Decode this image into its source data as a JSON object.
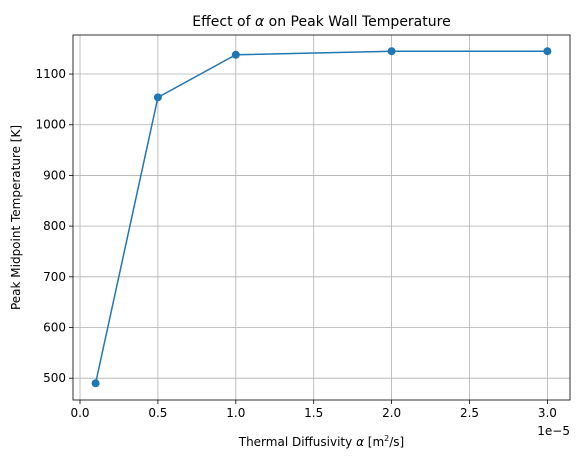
{
  "chart_data": {
    "type": "line",
    "title_prefix": "Effect of ",
    "title_symbol": "α",
    "title_suffix": " on Peak Wall Temperature",
    "xlabel_prefix": "Thermal Diffusivity ",
    "xlabel_symbol": "α",
    "xlabel_unit_open": " [m",
    "xlabel_unit_exp": "2",
    "xlabel_unit_close": "/s]",
    "ylabel": "Peak Midpoint Temperature [K]",
    "x_offset_label": "1e−5",
    "xlim": [
      -0.045,
      3.145
    ],
    "ylim": [
      457,
      1177
    ],
    "x_ticks": [
      0.0,
      0.5,
      1.0,
      1.5,
      2.0,
      2.5,
      3.0
    ],
    "x_tick_labels": [
      "0.0",
      "0.5",
      "1.0",
      "1.5",
      "2.0",
      "2.5",
      "3.0"
    ],
    "y_ticks": [
      500,
      600,
      700,
      800,
      900,
      1000,
      1100
    ],
    "y_tick_labels": [
      "500",
      "600",
      "700",
      "800",
      "900",
      "1000",
      "1100"
    ],
    "grid": true,
    "color": "#1f77b4",
    "series": [
      {
        "x": [
          0.1,
          0.5,
          1.0,
          2.0,
          3.0
        ],
        "y": [
          490,
          1054,
          1138,
          1145,
          1145
        ]
      }
    ]
  }
}
